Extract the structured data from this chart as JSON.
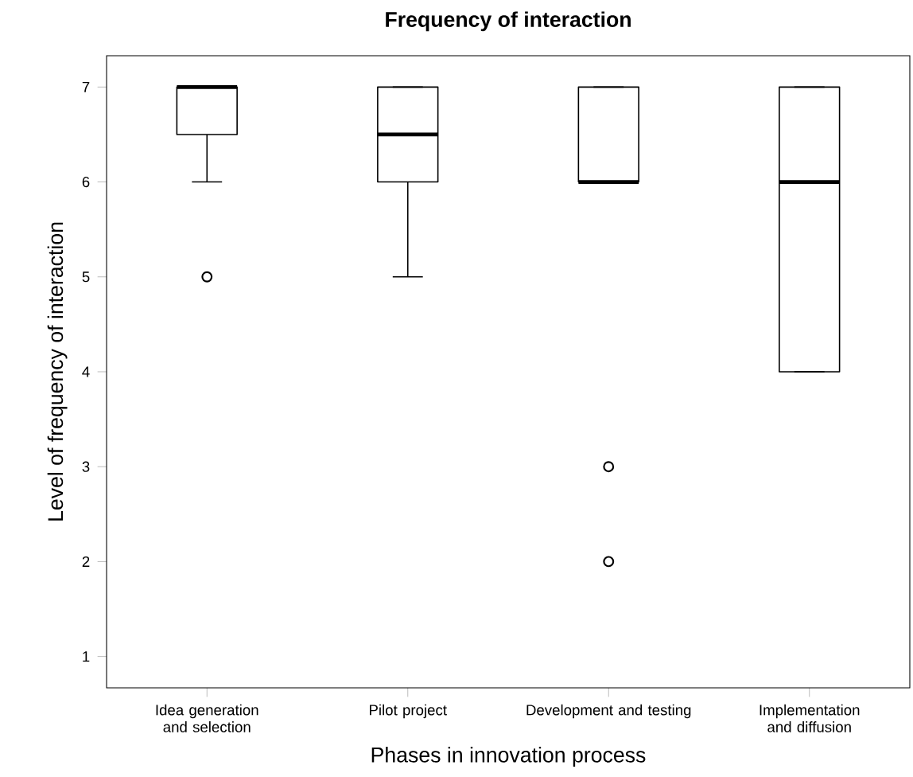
{
  "chart_data": {
    "type": "box",
    "title": "Frequency of interaction",
    "xlabel": "Phases in innovation process",
    "ylabel": "Level of frequency of interaction",
    "categories": [
      "Idea generation and selection",
      "Pilot project",
      "Development and testing",
      "Implementation and diffusion"
    ],
    "boxes": [
      {
        "low": 6,
        "q1": 6.5,
        "median": 7,
        "q3": 7,
        "high": 7,
        "outliers": [
          5
        ]
      },
      {
        "low": 5,
        "q1": 6,
        "median": 6.5,
        "q3": 7,
        "high": 7
      },
      {
        "low": 6,
        "q1": 6,
        "median": 6,
        "q3": 7,
        "high": 7,
        "outliers": [
          3,
          2
        ]
      },
      {
        "low": 4,
        "q1": 4,
        "median": 6,
        "q3": 7,
        "high": 7
      }
    ],
    "ylim": [
      0.67,
      7.33
    ],
    "yticks": [
      1,
      2,
      3,
      4,
      5,
      6,
      7
    ],
    "grid": false
  }
}
